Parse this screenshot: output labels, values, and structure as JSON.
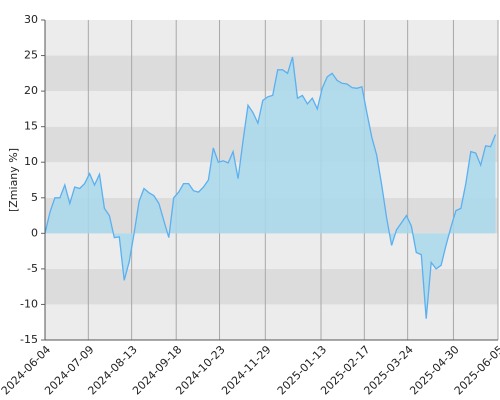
{
  "chart_data": {
    "type": "area",
    "y_label": "[Zmiany %]",
    "x": [
      "2024-06-04",
      "2024-06-08",
      "2024-06-12",
      "2024-06-16",
      "2024-06-20",
      "2024-06-24",
      "2024-06-28",
      "2024-07-02",
      "2024-07-06",
      "2024-07-10",
      "2024-07-14",
      "2024-07-18",
      "2024-07-22",
      "2024-07-26",
      "2024-07-30",
      "2024-08-03",
      "2024-08-07",
      "2024-08-11",
      "2024-08-15",
      "2024-08-19",
      "2024-08-23",
      "2024-08-27",
      "2024-08-31",
      "2024-09-04",
      "2024-09-08",
      "2024-09-12",
      "2024-09-16",
      "2024-09-20",
      "2024-09-24",
      "2024-09-28",
      "2024-10-02",
      "2024-10-06",
      "2024-10-10",
      "2024-10-14",
      "2024-10-18",
      "2024-10-22",
      "2024-10-26",
      "2024-10-30",
      "2024-11-03",
      "2024-11-07",
      "2024-11-11",
      "2024-11-15",
      "2024-11-19",
      "2024-11-23",
      "2024-11-27",
      "2024-12-01",
      "2024-12-05",
      "2024-12-09",
      "2024-12-13",
      "2024-12-17",
      "2024-12-21",
      "2024-12-25",
      "2024-12-29",
      "2025-01-02",
      "2025-01-06",
      "2025-01-10",
      "2025-01-14",
      "2025-01-18",
      "2025-01-22",
      "2025-01-26",
      "2025-01-30",
      "2025-02-03",
      "2025-02-07",
      "2025-02-11",
      "2025-02-15",
      "2025-02-19",
      "2025-02-23",
      "2025-02-27",
      "2025-03-03",
      "2025-03-07",
      "2025-03-11",
      "2025-03-15",
      "2025-03-19",
      "2025-03-23",
      "2025-03-27",
      "2025-03-31",
      "2025-04-04",
      "2025-04-08",
      "2025-04-12",
      "2025-04-16",
      "2025-04-20",
      "2025-04-24",
      "2025-04-28",
      "2025-05-02",
      "2025-05-06",
      "2025-05-10",
      "2025-05-14",
      "2025-05-18",
      "2025-05-22",
      "2025-05-26",
      "2025-05-30",
      "2025-06-03"
    ],
    "values": [
      0,
      3,
      5,
      5,
      6.8,
      4.2,
      6.5,
      6.3,
      7,
      8.4,
      6.8,
      8.3,
      3.5,
      2.5,
      -0.6,
      -0.5,
      -6.6,
      -4,
      0,
      4.5,
      6.3,
      5.7,
      5.3,
      4.2,
      1.8,
      -0.6,
      5,
      5.8,
      7,
      7,
      6,
      5.8,
      6.5,
      7.5,
      12,
      10,
      10.2,
      9.9,
      11.5,
      7.7,
      13,
      18,
      17,
      15.5,
      18.7,
      19.2,
      19.4,
      23,
      23,
      22.5,
      24.8,
      19,
      19.4,
      18.2,
      19,
      17.5,
      20.4,
      22,
      22.5,
      21.5,
      21.1,
      21,
      20.5,
      20.4,
      20.6,
      17,
      13.5,
      11,
      6.8,
      2.2,
      -1.7,
      0.5,
      1.5,
      2.5,
      1,
      -2.7,
      -3,
      -12,
      -4.1,
      -5,
      -4.5,
      -1.7,
      0.9,
      3.2,
      3.5,
      7,
      11.5,
      11.3,
      9.6,
      12.3,
      12.2,
      13.9
    ],
    "color": "#5ab0f0",
    "fill_color": "#a8d8ec",
    "xlim": [
      "2024-06-04",
      "2025-06-05"
    ],
    "xticks": [
      "2024-06-04",
      "2024-07-09",
      "2024-08-13",
      "2024-09-18",
      "2024-10-23",
      "2024-11-29",
      "2025-01-13",
      "2025-02-17",
      "2025-03-24",
      "2025-04-30",
      "2025-06-05"
    ],
    "ylim": [
      -15,
      30
    ],
    "yticks": [
      -15,
      -10,
      -5,
      0,
      5,
      10,
      15,
      20,
      25,
      30
    ],
    "band_colors": [
      "#ececec",
      "#dcdcdc"
    ],
    "grid": true
  }
}
